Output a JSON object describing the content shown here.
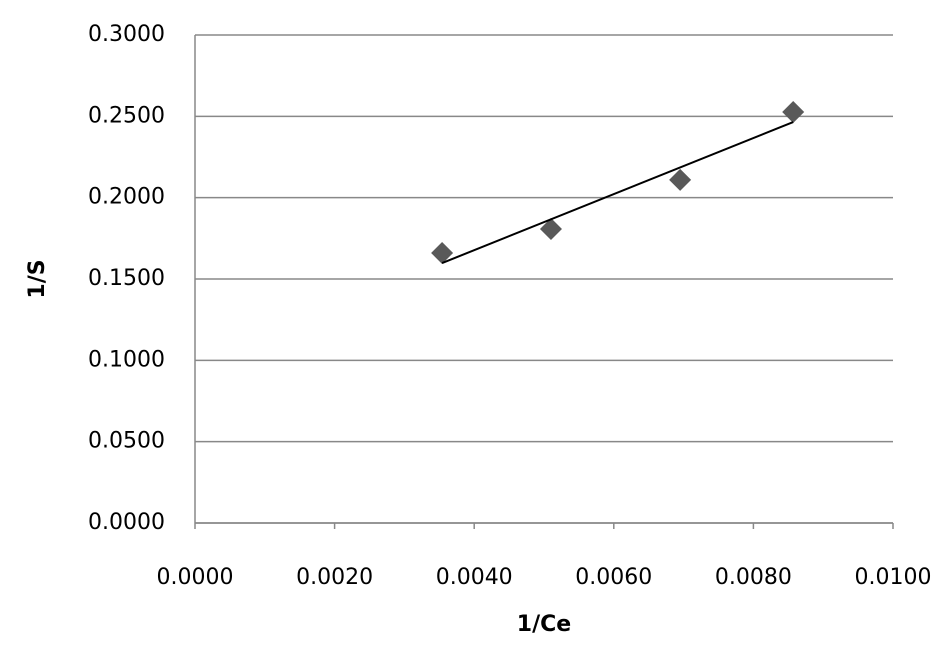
{
  "chart_data": {
    "type": "scatter",
    "x_label": "1/Ce",
    "y_label": "1/S",
    "series": [
      {
        "color": "#595959",
        "x": [
          0.00354,
          0.0051,
          0.00695,
          0.00857
        ],
        "values": [
          0.166,
          0.1807,
          0.2109,
          0.2527
        ],
        "trendline": {
          "color": "#000000",
          "x": [
            0.00354,
            0.00857
          ],
          "y": [
            0.1598,
            0.2465
          ]
        }
      }
    ],
    "xlim": [
      0,
      0.01
    ],
    "xticks": [
      {
        "value": 0,
        "label": "0.0000"
      },
      {
        "value": 0.002,
        "label": "0.0020"
      },
      {
        "value": 0.004,
        "label": "0.0040"
      },
      {
        "value": 0.006,
        "label": "0.0060"
      },
      {
        "value": 0.008,
        "label": "0.0080"
      },
      {
        "value": 0.01,
        "label": "0.0100"
      }
    ],
    "ylim": [
      0,
      0.3
    ],
    "yticks": [
      {
        "value": 0,
        "label": "0.0000"
      },
      {
        "value": 0.05,
        "label": "0.0500"
      },
      {
        "value": 0.1,
        "label": "0.1000"
      },
      {
        "value": 0.15,
        "label": "0.1500"
      },
      {
        "value": 0.2,
        "label": "0.2000"
      },
      {
        "value": 0.25,
        "label": "0.2500"
      },
      {
        "value": 0.3,
        "label": "0.3000"
      }
    ],
    "grid": true
  }
}
